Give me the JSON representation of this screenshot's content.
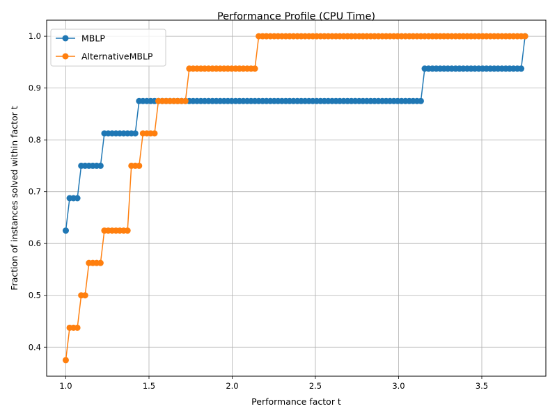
{
  "chart_data": {
    "type": "line",
    "title": "Performance Profile (CPU Time)",
    "xlabel": "Performance factor t",
    "ylabel": "Fraction of instances solved within factor t",
    "xlim": [
      0.885,
      3.885
    ],
    "ylim": [
      0.344,
      1.031
    ],
    "xticks": [
      1.0,
      1.5,
      2.0,
      2.5,
      3.0,
      3.5
    ],
    "xtick_labels": [
      "1.0",
      "1.5",
      "2.0",
      "2.5",
      "3.0",
      "3.5"
    ],
    "yticks": [
      0.4,
      0.5,
      0.6,
      0.7,
      0.8,
      0.9,
      1.0
    ],
    "ytick_labels": [
      "0.4",
      "0.5",
      "0.6",
      "0.7",
      "0.8",
      "0.9",
      "1.0"
    ],
    "grid": true,
    "legend_position": "top-left",
    "markers_per_series": 120,
    "x_range": [
      1.0,
      3.76
    ],
    "series": [
      {
        "name": "MBLP",
        "color": "#1f77b4",
        "steps": [
          {
            "t": 1.0,
            "value": 0.625
          },
          {
            "t": 1.02,
            "value": 0.6875
          },
          {
            "t": 1.08,
            "value": 0.75
          },
          {
            "t": 1.23,
            "value": 0.8125
          },
          {
            "t": 1.44,
            "value": 0.875
          },
          {
            "t": 3.14,
            "value": 0.9375
          },
          {
            "t": 3.76,
            "value": 1.0
          }
        ]
      },
      {
        "name": "AlternativeMBLP",
        "color": "#ff7f0e",
        "steps": [
          {
            "t": 1.0,
            "value": 0.375
          },
          {
            "t": 1.02,
            "value": 0.4375
          },
          {
            "t": 1.08,
            "value": 0.5
          },
          {
            "t": 1.13,
            "value": 0.5625
          },
          {
            "t": 1.22,
            "value": 0.625
          },
          {
            "t": 1.39,
            "value": 0.75
          },
          {
            "t": 1.46,
            "value": 0.8125
          },
          {
            "t": 1.55,
            "value": 0.875
          },
          {
            "t": 1.72,
            "value": 0.9375
          },
          {
            "t": 2.14,
            "value": 1.0
          }
        ]
      }
    ]
  }
}
